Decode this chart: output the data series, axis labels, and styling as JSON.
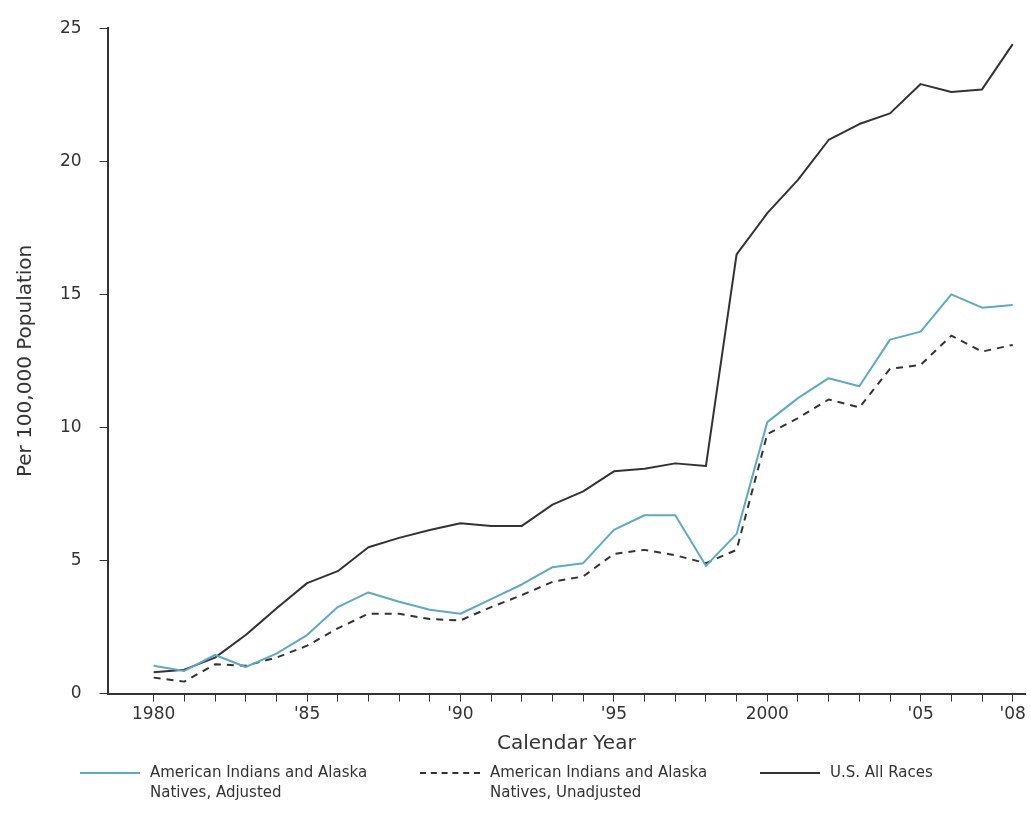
{
  "chart_data": {
    "type": "line",
    "xlabel": "Calendar Year",
    "ylabel": "Per 100,000 Population",
    "x": [
      1980,
      1981,
      1982,
      1983,
      1984,
      1985,
      1986,
      1987,
      1988,
      1989,
      1990,
      1991,
      1992,
      1993,
      1994,
      1995,
      1996,
      1997,
      1998,
      1999,
      2000,
      2001,
      2002,
      2003,
      2004,
      2005,
      2006,
      2007,
      2008
    ],
    "series": [
      {
        "name": "American Indians and Alaska Natives, Adjusted",
        "color": "#5aaac8",
        "line_style": "solid",
        "values": [
          1.05,
          0.85,
          1.45,
          1.0,
          1.5,
          2.2,
          3.25,
          3.8,
          3.45,
          3.15,
          3.0,
          3.55,
          4.1,
          4.75,
          4.9,
          6.15,
          6.7,
          6.7,
          4.8,
          6.0,
          10.2,
          11.1,
          11.85,
          11.55,
          13.3,
          13.6,
          15.0,
          14.5,
          14.6
        ]
      },
      {
        "name": "American Indians and Alaska Natives, Unadjusted",
        "color": "#333333",
        "line_style": "dashed",
        "values": [
          0.6,
          0.45,
          1.1,
          1.05,
          1.35,
          1.8,
          2.45,
          3.0,
          3.0,
          2.8,
          2.75,
          3.25,
          3.7,
          4.2,
          4.4,
          5.25,
          5.4,
          5.2,
          4.9,
          5.4,
          9.75,
          10.35,
          11.05,
          10.75,
          12.2,
          12.35,
          13.45,
          12.85,
          13.1
        ]
      },
      {
        "name": "U.S. All Races",
        "color": "#333333",
        "line_style": "solid",
        "values": [
          0.8,
          0.9,
          1.35,
          2.2,
          3.2,
          4.15,
          4.6,
          5.5,
          5.85,
          6.15,
          6.4,
          6.3,
          6.3,
          7.1,
          7.6,
          8.35,
          8.45,
          8.65,
          8.55,
          16.5,
          18.05,
          19.3,
          20.8,
          21.4,
          21.8,
          22.9,
          22.6,
          22.7,
          24.4
        ]
      }
    ],
    "xlim": [
      1978.5,
      2008.4
    ],
    "xticks": [
      {
        "value": 1980,
        "label": "1980"
      },
      {
        "value": 1981,
        "label": null
      },
      {
        "value": 1982,
        "label": null
      },
      {
        "value": 1983,
        "label": null
      },
      {
        "value": 1984,
        "label": null
      },
      {
        "value": 1985,
        "label": "'85"
      },
      {
        "value": 1986,
        "label": null
      },
      {
        "value": 1987,
        "label": null
      },
      {
        "value": 1988,
        "label": null
      },
      {
        "value": 1989,
        "label": null
      },
      {
        "value": 1990,
        "label": "'90"
      },
      {
        "value": 1991,
        "label": null
      },
      {
        "value": 1992,
        "label": null
      },
      {
        "value": 1993,
        "label": null
      },
      {
        "value": 1994,
        "label": null
      },
      {
        "value": 1995,
        "label": "'95"
      },
      {
        "value": 1996,
        "label": null
      },
      {
        "value": 1997,
        "label": null
      },
      {
        "value": 1998,
        "label": null
      },
      {
        "value": 1999,
        "label": null
      },
      {
        "value": 2000,
        "label": "2000"
      },
      {
        "value": 2001,
        "label": null
      },
      {
        "value": 2002,
        "label": null
      },
      {
        "value": 2003,
        "label": null
      },
      {
        "value": 2004,
        "label": null
      },
      {
        "value": 2005,
        "label": "'05"
      },
      {
        "value": 2006,
        "label": null
      },
      {
        "value": 2007,
        "label": null
      },
      {
        "value": 2008,
        "label": "'08"
      }
    ],
    "ylim": [
      0,
      25
    ],
    "yticks": [
      0,
      5,
      10,
      15,
      20,
      25
    ],
    "grid": false,
    "legend": "bottom",
    "marker": "none"
  }
}
